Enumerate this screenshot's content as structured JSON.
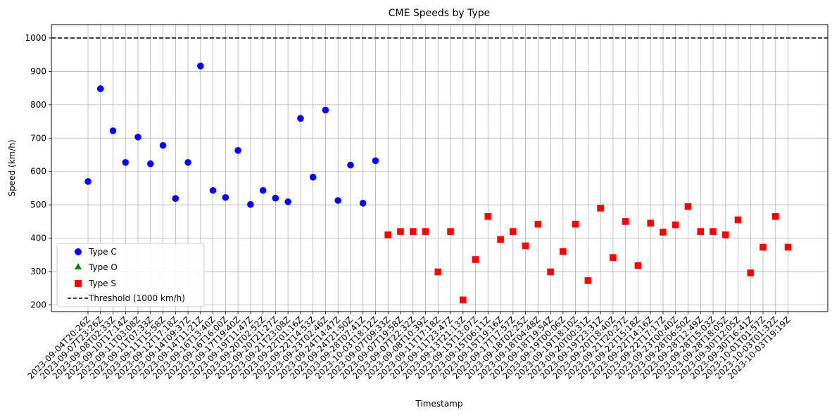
{
  "chart_data": {
    "type": "scatter",
    "title": "CME Speeds by Type",
    "xlabel": "Timestamp",
    "ylabel": "Speed (km/h)",
    "ylim": [
      180,
      1040
    ],
    "yticks": [
      200,
      300,
      400,
      500,
      600,
      700,
      800,
      900,
      1000
    ],
    "grid": true,
    "legend_position": "lower-left",
    "categories": [
      "2023-09-04T20:26Z",
      "2023-09-07T23:26Z",
      "2023-09-08T02:33Z",
      "2023-09-10T17:14Z",
      "2023-09-11T03:08Z",
      "2023-09-11T07:33Z",
      "2023-09-11T15:58Z",
      "2023-09-12T17:18Z",
      "2023-09-14T09:37Z",
      "2023-09-14T11:21Z",
      "2023-09-16T13:40Z",
      "2023-09-16T16:00Z",
      "2023-09-17T19:40Z",
      "2023-09-19T11:47Z",
      "2023-09-20T02:52Z",
      "2023-09-20T21:27Z",
      "2023-09-21T23:08Z",
      "2023-09-22T01:16Z",
      "2023-09-22T14:53Z",
      "2023-09-23T02:46Z",
      "2023-09-24T14:47Z",
      "2023-09-24T21:50Z",
      "2023-09-28T07:41Z",
      "2023-10-03T18:12Z",
      "2023-09-07T09:33Z",
      "2023-09-07T19:58Z",
      "2023-09-07T22:32Z",
      "2023-09-08T10:39Z",
      "2023-09-11T17:18Z",
      "2023-09-11T23:47Z",
      "2023-09-13T21:13Z",
      "2023-09-15T13:07Z",
      "2023-09-15T06:11Z",
      "2023-09-15T19:16Z",
      "2023-09-17T17:57Z",
      "2023-09-18T02:25Z",
      "2023-09-18T04:48Z",
      "2023-09-18T19:54Z",
      "2023-09-19T00:06Z",
      "2023-09-19T18:10Z",
      "2023-09-20T00:31Z",
      "2023-09-19T23:31Z",
      "2023-09-20T18:40Z",
      "2023-09-21T20:27Z",
      "2023-09-22T15:18Z",
      "2023-09-22T14:16Z",
      "2023-09-22T17:17Z",
      "2023-09-23T00:40Z",
      "2023-09-28T06:50Z",
      "2023-09-28T12:49Z",
      "2023-09-28T15:03Z",
      "2023-09-28T18:05Z",
      "2023-09-30T12:05Z",
      "2023-09-30T16:41Z",
      "2023-10-01T01:57Z",
      "2023-10-03T01:32Z",
      "2023-10-03T19:19Z"
    ],
    "series": [
      {
        "name": "Type C",
        "color": "#0000ff",
        "marker": "circle",
        "points": [
          [
            0,
            570
          ],
          [
            1,
            848
          ],
          [
            2,
            722
          ],
          [
            3,
            627
          ],
          [
            4,
            703
          ],
          [
            5,
            623
          ],
          [
            6,
            678
          ],
          [
            7,
            519
          ],
          [
            8,
            627
          ],
          [
            9,
            916
          ],
          [
            10,
            543
          ],
          [
            11,
            522
          ],
          [
            12,
            663
          ],
          [
            13,
            501
          ],
          [
            14,
            543
          ],
          [
            15,
            520
          ],
          [
            16,
            509
          ],
          [
            17,
            759
          ],
          [
            18,
            583
          ],
          [
            19,
            784
          ],
          [
            20,
            513
          ],
          [
            21,
            619
          ],
          [
            22,
            505
          ],
          [
            23,
            632
          ]
        ]
      },
      {
        "name": "Type O",
        "color": "#008000",
        "marker": "triangle",
        "points": []
      },
      {
        "name": "Type S",
        "color": "#ff0000",
        "marker": "square",
        "points": [
          [
            24,
            410
          ],
          [
            25,
            420
          ],
          [
            26,
            420
          ],
          [
            27,
            420
          ],
          [
            28,
            299
          ],
          [
            29,
            420
          ],
          [
            30,
            215
          ],
          [
            31,
            336
          ],
          [
            32,
            465
          ],
          [
            33,
            396
          ],
          [
            34,
            420
          ],
          [
            35,
            377
          ],
          [
            36,
            442
          ],
          [
            37,
            299
          ],
          [
            38,
            360
          ],
          [
            39,
            442
          ],
          [
            40,
            273
          ],
          [
            41,
            490
          ],
          [
            42,
            342
          ],
          [
            43,
            450
          ],
          [
            44,
            318
          ],
          [
            45,
            445
          ],
          [
            46,
            418
          ],
          [
            47,
            440
          ],
          [
            48,
            495
          ],
          [
            49,
            420
          ],
          [
            50,
            420
          ],
          [
            51,
            410
          ],
          [
            52,
            455
          ],
          [
            53,
            296
          ],
          [
            54,
            373
          ],
          [
            55,
            465
          ],
          [
            56,
            373
          ]
        ]
      }
    ],
    "threshold": {
      "name": "Threshold (1000 km/h)",
      "value": 1000,
      "color": "#000000",
      "style": "dashed"
    }
  }
}
